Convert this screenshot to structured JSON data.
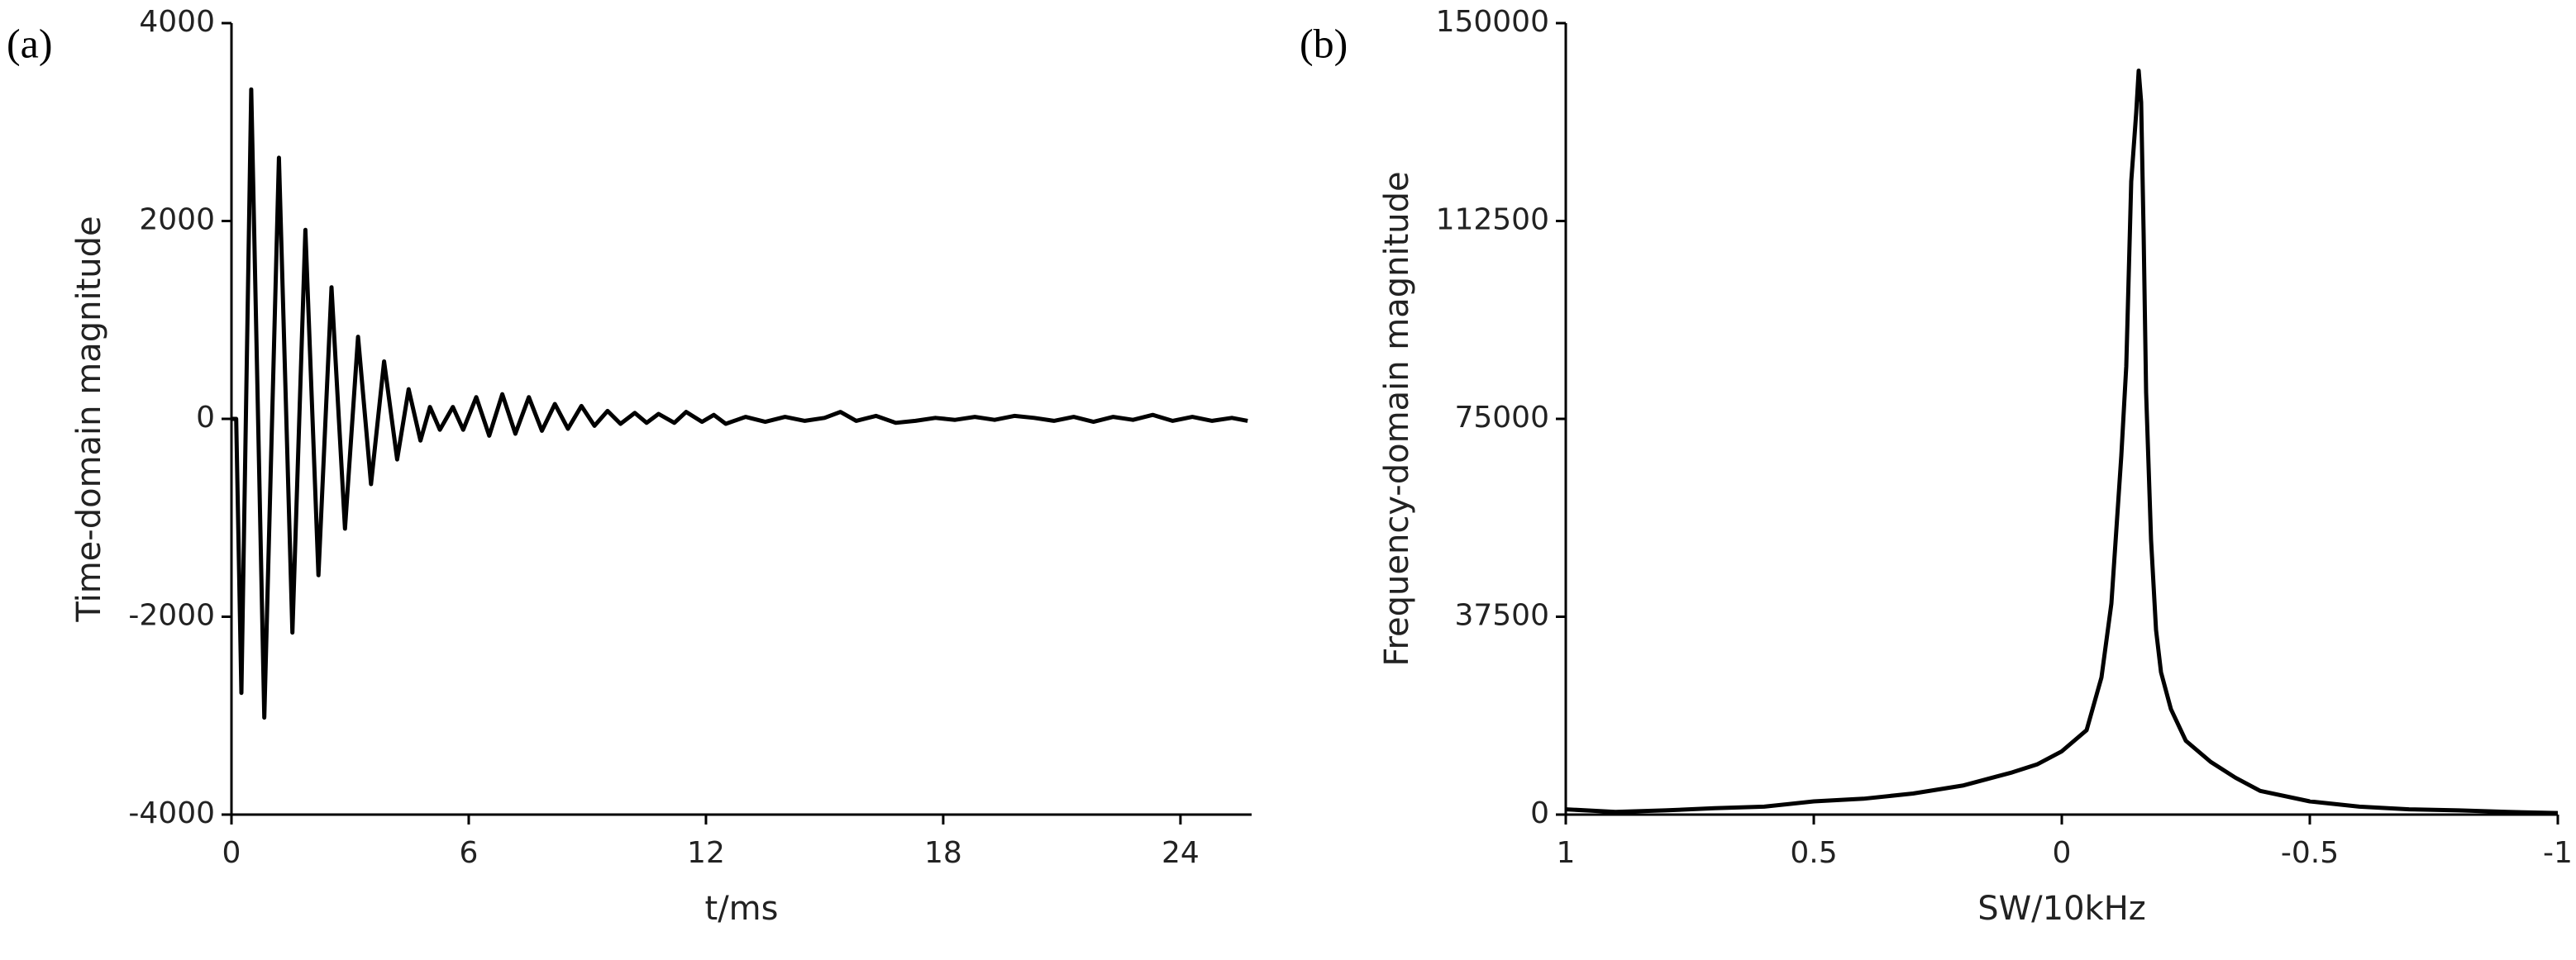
{
  "chart_data": [
    {
      "type": "line",
      "panel_label": "(a)",
      "x_label": "t/ms",
      "y_label": "Time-domain magnitude",
      "color": "#000000",
      "xlim": [
        0,
        25.8
      ],
      "xticks": [
        0,
        6,
        12,
        18,
        24
      ],
      "ylim": [
        -4000,
        4000
      ],
      "yticks": [
        -4000,
        -2000,
        0,
        2000,
        4000
      ],
      "x": [
        0,
        0.12,
        0.25,
        0.5,
        0.83,
        1.2,
        1.54,
        1.87,
        2.2,
        2.53,
        2.87,
        3.2,
        3.53,
        3.86,
        4.19,
        4.48,
        4.78,
        5.02,
        5.27,
        5.6,
        5.86,
        6.19,
        6.52,
        6.85,
        7.18,
        7.52,
        7.85,
        8.18,
        8.51,
        8.85,
        9.18,
        9.51,
        9.84,
        10.2,
        10.5,
        10.8,
        11.2,
        11.5,
        11.9,
        12.2,
        12.5,
        13,
        13.5,
        14,
        14.5,
        15,
        15.4,
        15.8,
        16.3,
        16.8,
        17.3,
        17.8,
        18.3,
        18.8,
        19.3,
        19.8,
        20.3,
        20.8,
        21.3,
        21.8,
        22.3,
        22.8,
        23.3,
        23.8,
        24.3,
        24.8,
        25.3,
        25.7
      ],
      "values": [
        0,
        0,
        -2770,
        3330,
        -3020,
        2640,
        -2160,
        1910,
        -1580,
        1330,
        -1110,
        830,
        -660,
        580,
        -410,
        300,
        -220,
        120,
        -110,
        120,
        -110,
        220,
        -170,
        250,
        -150,
        220,
        -120,
        150,
        -100,
        130,
        -70,
        80,
        -50,
        60,
        -40,
        50,
        -40,
        70,
        -30,
        40,
        -50,
        20,
        -30,
        20,
        -20,
        10,
        70,
        -20,
        30,
        -40,
        -20,
        10,
        -10,
        20,
        -10,
        30,
        10,
        -20,
        20,
        -30,
        20,
        -10,
        40,
        -20,
        20,
        -20,
        10,
        -20
      ]
    },
    {
      "type": "line",
      "panel_label": "(b)",
      "x_label": "SW/10kHz",
      "y_label": "Frequency-domain magnitude",
      "color": "#000000",
      "xlim": [
        1,
        -1
      ],
      "xticks": [
        1,
        0.5,
        0,
        -0.5,
        -1
      ],
      "ylim": [
        0,
        150000
      ],
      "yticks": [
        0,
        37500,
        75000,
        112500,
        150000
      ],
      "x": [
        1,
        0.9,
        0.8,
        0.7,
        0.6,
        0.5,
        0.4,
        0.3,
        0.2,
        0.1,
        0.05,
        0,
        -0.05,
        -0.08,
        -0.1,
        -0.12,
        -0.13,
        -0.14,
        -0.15,
        -0.155,
        -0.16,
        -0.165,
        -0.17,
        -0.18,
        -0.19,
        -0.2,
        -0.22,
        -0.25,
        -0.3,
        -0.35,
        -0.4,
        -0.5,
        -0.6,
        -0.7,
        -0.8,
        -0.9,
        -1
      ],
      "values": [
        1000,
        500,
        800,
        1200,
        1500,
        2500,
        3000,
        4000,
        5500,
        8000,
        9500,
        12000,
        16000,
        26000,
        40000,
        68000,
        85000,
        120000,
        133000,
        141000,
        135000,
        110000,
        80000,
        52000,
        35000,
        27000,
        20000,
        14000,
        10000,
        7000,
        4500,
        2500,
        1500,
        1000,
        800,
        500,
        300
      ]
    }
  ]
}
